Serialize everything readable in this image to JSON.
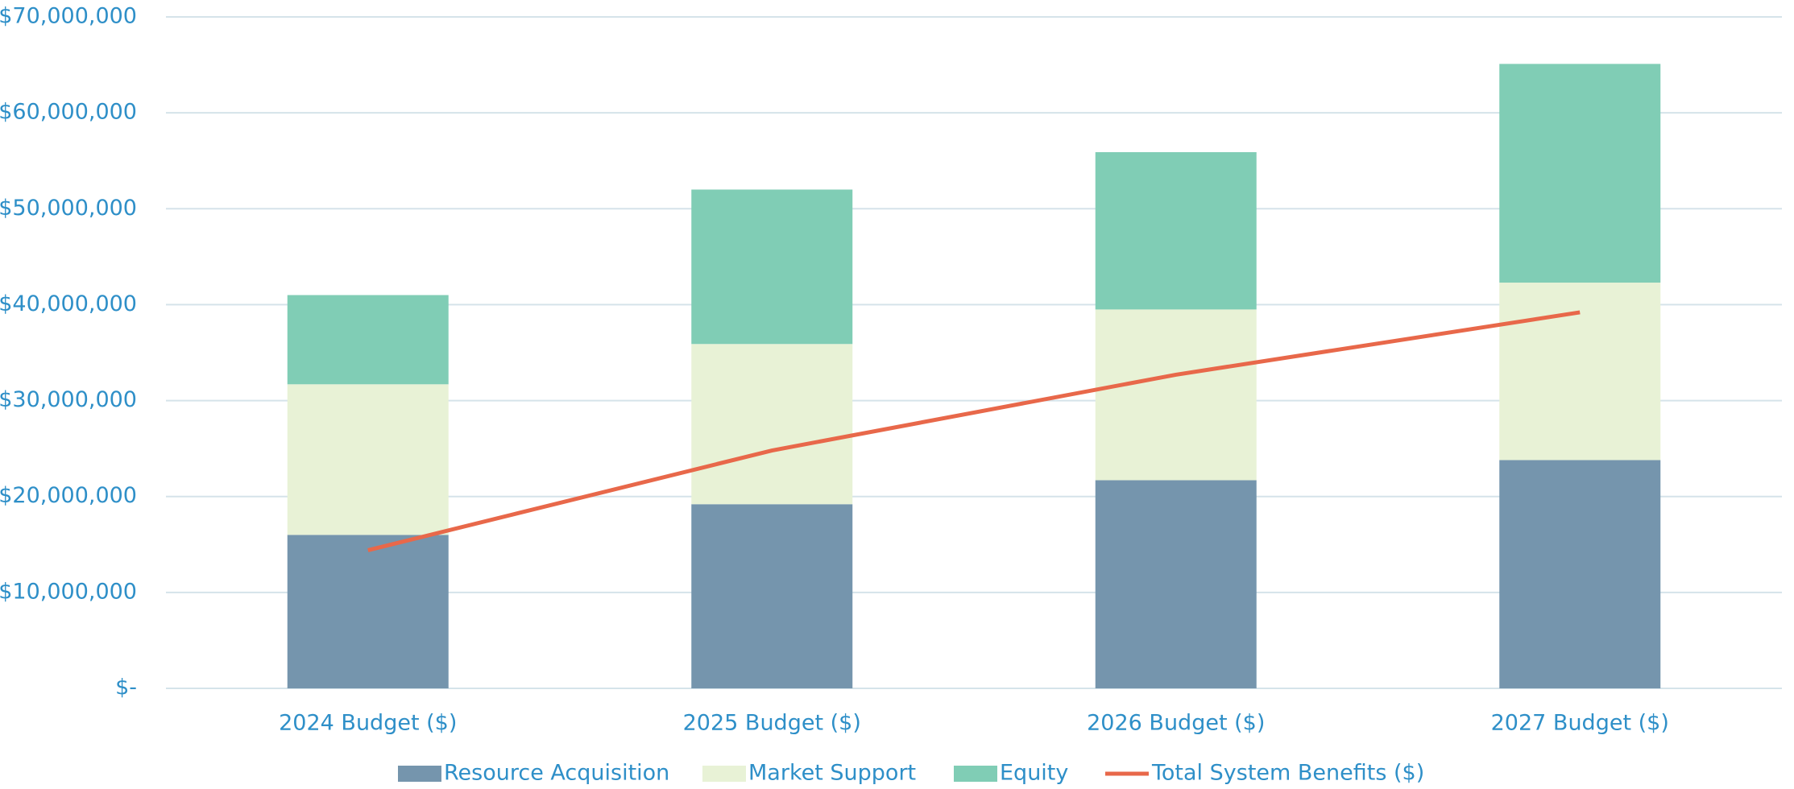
{
  "chart_data": {
    "type": "bar",
    "stacked": true,
    "categories": [
      "2024 Budget ($)",
      "2025 Budget ($)",
      "2026 Budget ($)",
      "2027 Budget ($)"
    ],
    "series": [
      {
        "name": "Resource Acquisition",
        "color": "#7595ad",
        "values": [
          16000000,
          19200000,
          21700000,
          23800000
        ]
      },
      {
        "name": "Market Support",
        "color": "#e8f2d6",
        "values": [
          15700000,
          16700000,
          17800000,
          18500000
        ]
      },
      {
        "name": "Equity",
        "color": "#80cdb5",
        "values": [
          9300000,
          16100000,
          16400000,
          22800000
        ]
      },
      {
        "name": "Total System Benefits ($)",
        "color": "#e8684a",
        "type": "line",
        "values": [
          14400000,
          24800000,
          32700000,
          39200000
        ]
      }
    ],
    "ylim": [
      0,
      70000000
    ],
    "yticks": [
      {
        "value": 0,
        "label": "$-"
      },
      {
        "value": 10000000,
        "label": "$10,000,000"
      },
      {
        "value": 20000000,
        "label": "$20,000,000"
      },
      {
        "value": 30000000,
        "label": "$30,000,000"
      },
      {
        "value": 40000000,
        "label": "$40,000,000"
      },
      {
        "value": 50000000,
        "label": "$50,000,000"
      },
      {
        "value": 60000000,
        "label": "$60,000,000"
      },
      {
        "value": 70000000,
        "label": "$70,000,000"
      }
    ],
    "grid": true,
    "legend": "bottom"
  }
}
